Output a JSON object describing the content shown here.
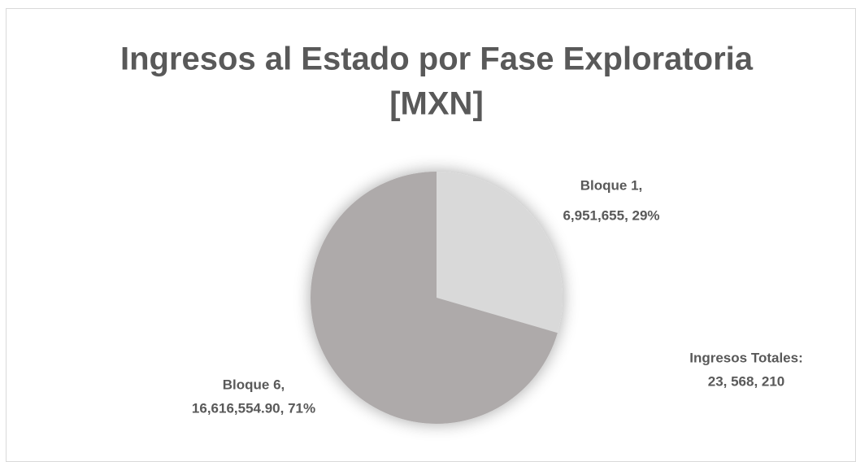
{
  "chart_data": {
    "type": "pie",
    "title": [
      "Ingresos al Estado por Fase Exploratoria",
      "[MXN]"
    ],
    "categories": [
      "Bloque 1",
      "Bloque 6"
    ],
    "values": [
      6951655,
      16616554.9
    ],
    "percentages": [
      29,
      71
    ],
    "data_labels": [
      [
        "Bloque 1,",
        "6,951,655, 29%"
      ],
      [
        "Bloque 6,",
        "16,616,554.90, 71%"
      ]
    ],
    "colors": [
      "#d9d9d9",
      "#aeaaaa"
    ],
    "annotation": [
      "Ingresos Totales:",
      "23, 568, 210"
    ]
  }
}
